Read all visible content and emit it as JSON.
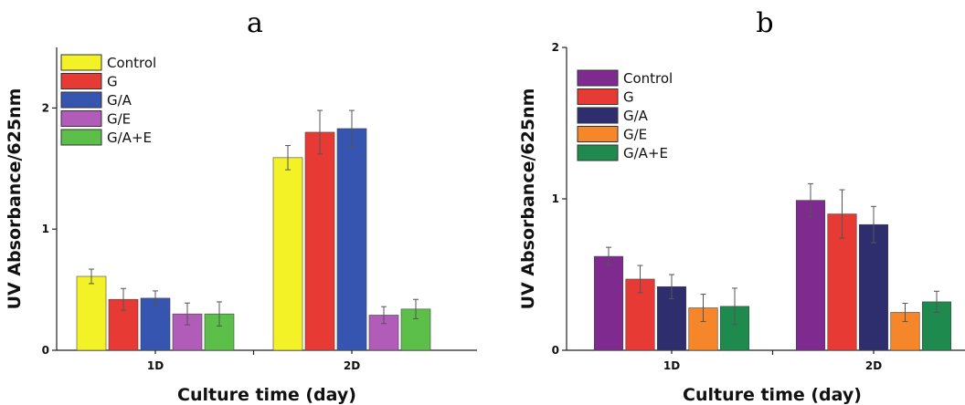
{
  "chart_data": [
    {
      "type": "bar",
      "title": "a",
      "xlabel": "Culture time (day)",
      "ylabel": "UV Absorbance/625nm",
      "ylim": [
        0,
        2.5
      ],
      "yticks": [
        "0",
        "1",
        "2"
      ],
      "categories": [
        "1D",
        "2D"
      ],
      "legend_position": "top-left",
      "grid": false,
      "series": [
        {
          "name": "Control",
          "color": "#f2f227",
          "values": [
            0.61,
            1.59
          ],
          "errors": [
            0.06,
            0.1
          ]
        },
        {
          "name": "G",
          "color": "#e83a34",
          "values": [
            0.42,
            1.8
          ],
          "errors": [
            0.09,
            0.18
          ]
        },
        {
          "name": "G/A",
          "color": "#3555b1",
          "values": [
            0.43,
            1.83
          ],
          "errors": [
            0.06,
            0.15
          ]
        },
        {
          "name": "G/E",
          "color": "#b05cb8",
          "values": [
            0.3,
            0.29
          ],
          "errors": [
            0.09,
            0.07
          ]
        },
        {
          "name": "G/A+E",
          "color": "#5cbf4a",
          "values": [
            0.3,
            0.34
          ],
          "errors": [
            0.1,
            0.08
          ]
        }
      ]
    },
    {
      "type": "bar",
      "title": "b",
      "xlabel": "Culture time (day)",
      "ylabel": "UV Absorbance/625nm",
      "ylim": [
        0,
        2
      ],
      "yticks": [
        "0",
        "1",
        "2"
      ],
      "categories": [
        "1D",
        "2D"
      ],
      "legend_position": "top-left",
      "grid": false,
      "series": [
        {
          "name": "Control",
          "color": "#7f2a8f",
          "values": [
            0.62,
            0.99
          ],
          "errors": [
            0.06,
            0.11
          ]
        },
        {
          "name": "G",
          "color": "#e83a34",
          "values": [
            0.47,
            0.9
          ],
          "errors": [
            0.09,
            0.16
          ]
        },
        {
          "name": "G/A",
          "color": "#2e2e6e",
          "values": [
            0.42,
            0.83
          ],
          "errors": [
            0.08,
            0.12
          ]
        },
        {
          "name": "G/E",
          "color": "#f5862a",
          "values": [
            0.28,
            0.25
          ],
          "errors": [
            0.09,
            0.06
          ]
        },
        {
          "name": "G/A+E",
          "color": "#1f8a4e",
          "values": [
            0.29,
            0.32
          ],
          "errors": [
            0.12,
            0.07
          ]
        }
      ]
    }
  ]
}
